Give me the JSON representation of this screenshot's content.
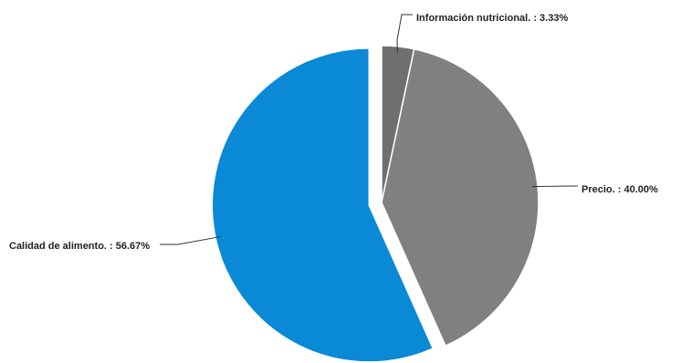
{
  "chart_data": {
    "type": "pie",
    "title": "",
    "legend": "none",
    "slices": [
      {
        "label": "Información nutricional. : 3.33%",
        "name": "Información nutricional.",
        "value": 3.33,
        "color": "#6f6f6f"
      },
      {
        "label": "Precio. : 40.00%",
        "name": "Precio.",
        "value": 40.0,
        "color": "#808080"
      },
      {
        "label": "Calidad de alimento. : 56.67%",
        "name": "Calidad de alimento.",
        "value": 56.67,
        "color": "#0a8ad6",
        "exploded": true
      }
    ]
  }
}
